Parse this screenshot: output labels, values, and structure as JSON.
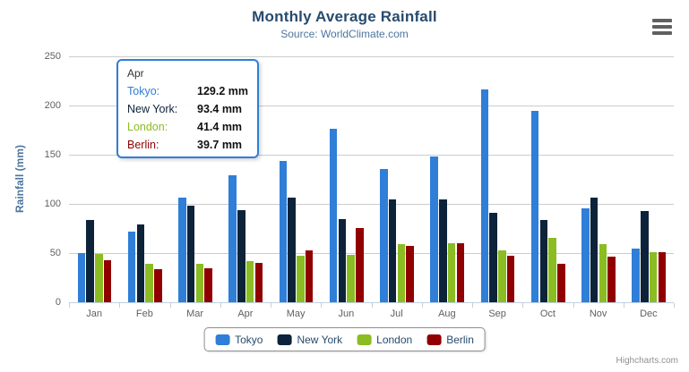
{
  "chart": {
    "title": "Monthly Average Rainfall",
    "subtitle": "Source: WorldClimate.com",
    "y_axis_title": "Rainfall (mm)",
    "credits": "Highcharts.com"
  },
  "tooltip": {
    "header": "Apr",
    "rows": [
      {
        "label": "Tokyo:",
        "value": "129.2 mm",
        "color": "#2f7ed8"
      },
      {
        "label": "New York:",
        "value": "93.4 mm",
        "color": "#0d233a"
      },
      {
        "label": "London:",
        "value": "41.4 mm",
        "color": "#8bbc21"
      },
      {
        "label": "Berlin:",
        "value": "39.7 mm",
        "color": "#910000"
      }
    ]
  },
  "chart_data": {
    "type": "bar",
    "title": "Monthly Average Rainfall",
    "subtitle": "Source: WorldClimate.com",
    "xlabel": "",
    "ylabel": "Rainfall (mm)",
    "ylim": [
      0,
      250
    ],
    "yticks": [
      0,
      50,
      100,
      150,
      200,
      250
    ],
    "grid": true,
    "legend_position": "bottom",
    "categories": [
      "Jan",
      "Feb",
      "Mar",
      "Apr",
      "May",
      "Jun",
      "Jul",
      "Aug",
      "Sep",
      "Oct",
      "Nov",
      "Dec"
    ],
    "series": [
      {
        "name": "Tokyo",
        "color": "#2f7ed8",
        "values": [
          49.9,
          71.5,
          106.4,
          129.2,
          144.0,
          176.0,
          135.6,
          148.5,
          216.4,
          194.1,
          95.6,
          54.4
        ]
      },
      {
        "name": "New York",
        "color": "#0d233a",
        "values": [
          83.6,
          78.8,
          98.5,
          93.4,
          106.0,
          84.5,
          105.0,
          104.3,
          91.2,
          83.5,
          106.6,
          92.3
        ]
      },
      {
        "name": "London",
        "color": "#8bbc21",
        "values": [
          48.9,
          38.8,
          39.3,
          41.4,
          47.0,
          48.3,
          59.0,
          59.6,
          52.4,
          65.2,
          59.3,
          51.2
        ]
      },
      {
        "name": "Berlin",
        "color": "#910000",
        "values": [
          42.4,
          33.2,
          34.5,
          39.7,
          52.6,
          75.5,
          57.4,
          60.4,
          47.6,
          39.1,
          46.8,
          51.1
        ]
      }
    ]
  }
}
